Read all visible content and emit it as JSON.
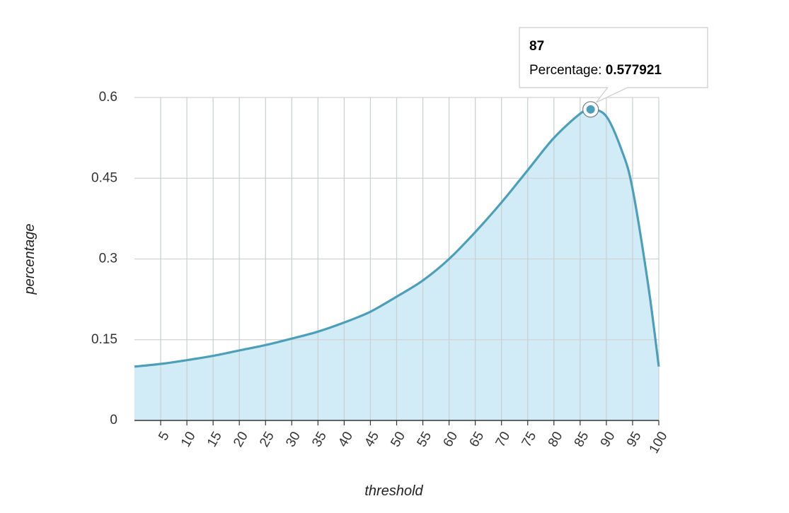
{
  "chart_data": {
    "type": "area",
    "title": "",
    "xlabel": "threshold",
    "ylabel": "percentage",
    "xlim": [
      0,
      100
    ],
    "ylim": [
      0,
      0.6
    ],
    "x_ticks": [
      5,
      10,
      15,
      20,
      25,
      30,
      35,
      40,
      45,
      50,
      55,
      60,
      65,
      70,
      75,
      80,
      85,
      90,
      95,
      100
    ],
    "y_ticks": [
      0,
      0.15,
      0.3,
      0.45,
      0.6
    ],
    "y_tick_labels": [
      "0",
      "0.15",
      "0.3",
      "0.45",
      "0.6"
    ],
    "grid": true,
    "series": [
      {
        "color": "#4b9fba",
        "fill_color": "#cfebf5",
        "x": [
          0,
          5,
          10,
          15,
          20,
          25,
          30,
          35,
          40,
          45,
          50,
          55,
          60,
          65,
          70,
          75,
          80,
          85,
          87,
          90,
          93,
          95,
          98,
          100
        ],
        "values": [
          0.1,
          0.105,
          0.112,
          0.12,
          0.13,
          0.14,
          0.152,
          0.165,
          0.182,
          0.202,
          0.23,
          0.26,
          0.3,
          0.35,
          0.405,
          0.465,
          0.525,
          0.57,
          0.577921,
          0.565,
          0.5,
          0.43,
          0.25,
          0.1
        ]
      }
    ],
    "highlighted_point": {
      "x": 87,
      "y": 0.577921
    },
    "tooltip": {
      "title": "87",
      "label": "Percentage: ",
      "value": "0.577921"
    }
  }
}
